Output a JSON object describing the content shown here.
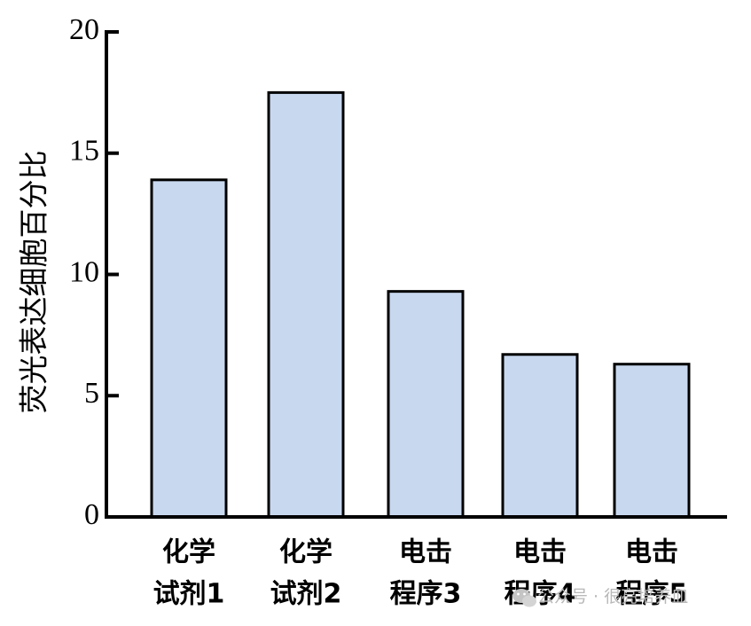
{
  "chart_data": {
    "type": "bar",
    "categories": [
      [
        "化学",
        "试剂1"
      ],
      [
        "化学",
        "试剂2"
      ],
      [
        "电击",
        "程序3"
      ],
      [
        "电击",
        "程序4"
      ],
      [
        "电击",
        "程序5"
      ]
    ],
    "values": [
      13.9,
      17.5,
      9.3,
      6.7,
      6.3
    ],
    "title": "",
    "xlabel": "",
    "ylabel": "荧光表达细胞百分比",
    "ylim": [
      0,
      20
    ],
    "yticks": [
      "0",
      "5",
      "10",
      "15",
      "20"
    ],
    "grid": false,
    "legend": "none",
    "colors": {
      "bar_fill": "#c8d8ef",
      "bar_stroke": "#000000",
      "axis": "#000000"
    }
  },
  "watermark": {
    "icon": "wechat-icon",
    "text": "公众号 · 很亮培养皿"
  }
}
